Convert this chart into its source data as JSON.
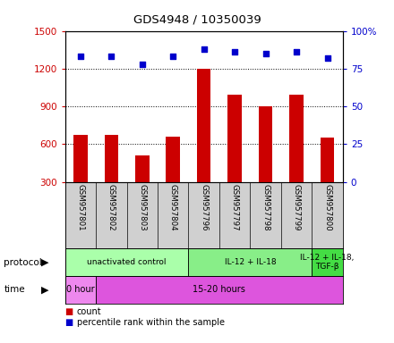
{
  "title": "GDS4948 / 10350039",
  "samples": [
    "GSM957801",
    "GSM957802",
    "GSM957803",
    "GSM957804",
    "GSM957796",
    "GSM957797",
    "GSM957798",
    "GSM957799",
    "GSM957800"
  ],
  "counts": [
    670,
    670,
    510,
    660,
    1200,
    990,
    900,
    990,
    650
  ],
  "percentile_ranks": [
    83,
    83,
    78,
    83,
    88,
    86,
    85,
    86,
    82
  ],
  "ylim_left": [
    300,
    1500
  ],
  "yticks_left": [
    300,
    600,
    900,
    1200,
    1500
  ],
  "ylim_right": [
    0,
    100
  ],
  "yticks_right": [
    0,
    25,
    50,
    75,
    100
  ],
  "bar_color": "#cc0000",
  "dot_color": "#0000cc",
  "protocol_groups": [
    {
      "label": "unactivated control",
      "start": 0,
      "end": 4
    },
    {
      "label": "IL-12 + IL-18",
      "start": 4,
      "end": 8
    },
    {
      "label": "IL-12 + IL-18,\nTGF-β",
      "start": 8,
      "end": 9
    }
  ],
  "protocol_colors": [
    "#aaffaa",
    "#88ee88",
    "#44dd44"
  ],
  "time_groups": [
    {
      "label": "0 hour",
      "start": 0,
      "end": 1
    },
    {
      "label": "15-20 hours",
      "start": 1,
      "end": 9
    }
  ],
  "time_colors": [
    "#ee88ee",
    "#dd55dd"
  ],
  "protocol_label": "protocol",
  "time_label": "time",
  "legend_count": "count",
  "legend_pct": "percentile rank within the sample",
  "bg_color": "#ffffff",
  "tick_color_left": "#cc0000",
  "tick_color_right": "#0000cc",
  "label_gray": "#d0d0d0"
}
